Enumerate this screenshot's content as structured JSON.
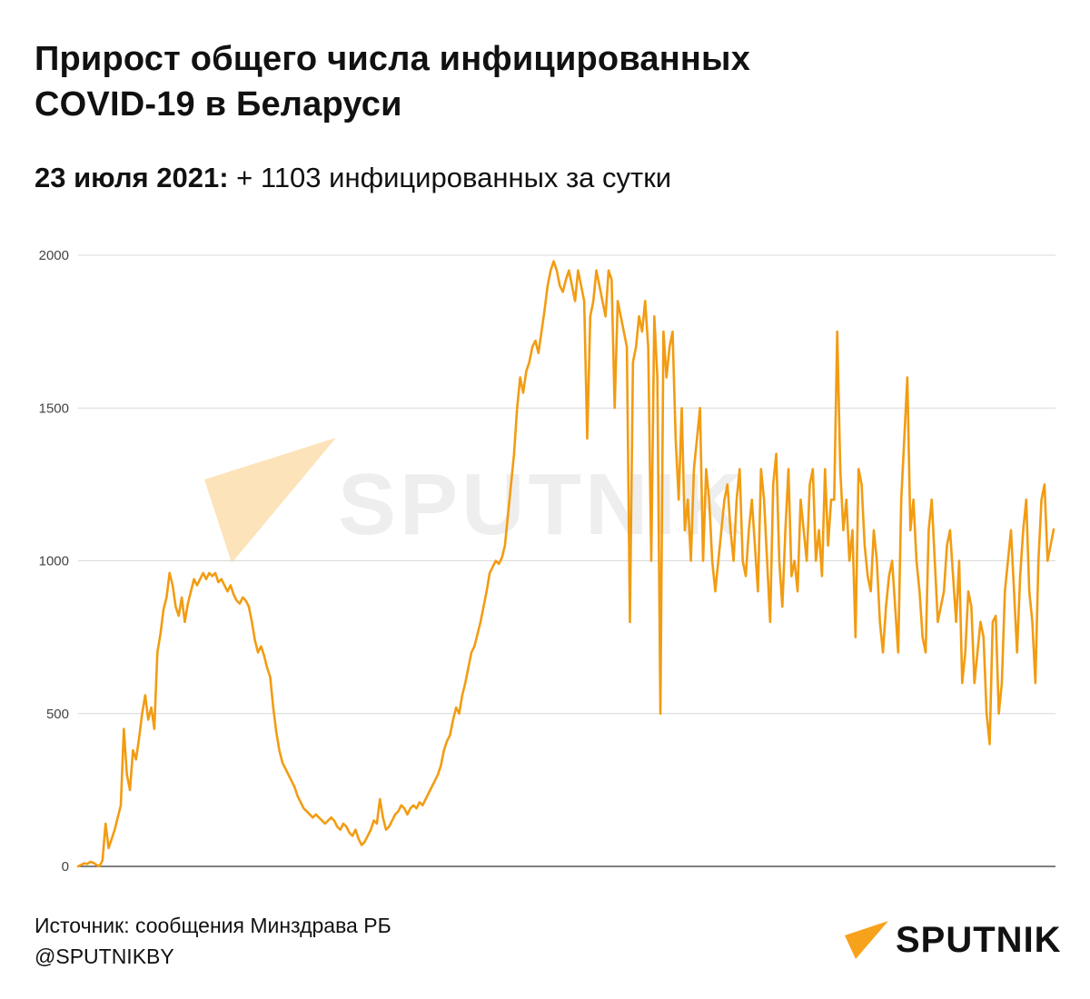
{
  "header": {
    "title_line1": "Прирост общего числа инфицированных",
    "title_line2": "COVID-19 в Беларуси",
    "subtitle_date": "23 июля 2021:",
    "subtitle_text": " + 1103 инфицированных за сутки"
  },
  "footer": {
    "source": "Источник: сообщения Минздрава РБ",
    "handle": "@SPUTNIKBY"
  },
  "brand": {
    "logo_text": "SPUTNIK",
    "watermark_text": "SPUTNIK",
    "accent_color": "#F29C12",
    "logo_color": "#F7A21B"
  },
  "chart_data": {
    "type": "line",
    "title": "Прирост общего числа инфицированных COVID-19 в Беларуси",
    "xlabel": "",
    "ylabel": "",
    "ylim": [
      0,
      2000
    ],
    "yticks": [
      0,
      500,
      1000,
      1500,
      2000
    ],
    "grid": true,
    "legend": "none",
    "series": [
      {
        "values": [
          0,
          5,
          10,
          8,
          15,
          12,
          5,
          0,
          20,
          140,
          60,
          90,
          120,
          160,
          200,
          450,
          300,
          250,
          380,
          350,
          420,
          500,
          560,
          480,
          520,
          450,
          700,
          760,
          840,
          880,
          960,
          920,
          850,
          820,
          880,
          800,
          860,
          900,
          940,
          920,
          940,
          960,
          940,
          960,
          950,
          960,
          930,
          940,
          920,
          900,
          920,
          890,
          870,
          860,
          880,
          870,
          850,
          800,
          740,
          700,
          720,
          690,
          650,
          620,
          520,
          440,
          380,
          340,
          320,
          300,
          280,
          260,
          230,
          210,
          190,
          180,
          170,
          160,
          170,
          160,
          150,
          140,
          150,
          160,
          150,
          130,
          120,
          140,
          130,
          110,
          100,
          120,
          90,
          70,
          80,
          100,
          120,
          150,
          140,
          220,
          160,
          120,
          130,
          150,
          170,
          180,
          200,
          190,
          170,
          190,
          200,
          190,
          210,
          200,
          220,
          240,
          260,
          280,
          300,
          330,
          380,
          410,
          430,
          480,
          520,
          500,
          560,
          600,
          650,
          700,
          720,
          760,
          800,
          850,
          900,
          960,
          980,
          1000,
          990,
          1010,
          1050,
          1150,
          1250,
          1350,
          1500,
          1600,
          1550,
          1620,
          1650,
          1700,
          1720,
          1680,
          1750,
          1820,
          1900,
          1950,
          1980,
          1950,
          1900,
          1880,
          1920,
          1950,
          1900,
          1850,
          1950,
          1900,
          1850,
          1400,
          1800,
          1850,
          1950,
          1900,
          1850,
          1800,
          1950,
          1920,
          1500,
          1850,
          1800,
          1750,
          1700,
          800,
          1650,
          1700,
          1800,
          1750,
          1850,
          1700,
          1000,
          1800,
          1600,
          500,
          1750,
          1600,
          1700,
          1750,
          1400,
          1200,
          1500,
          1100,
          1200,
          1000,
          1300,
          1400,
          1500,
          1000,
          1300,
          1200,
          1000,
          900,
          1000,
          1100,
          1200,
          1250,
          1100,
          1000,
          1200,
          1300,
          1000,
          950,
          1100,
          1200,
          1050,
          900,
          1300,
          1200,
          1000,
          800,
          1250,
          1350,
          1000,
          850,
          1100,
          1300,
          950,
          1000,
          900,
          1200,
          1100,
          1000,
          1250,
          1300,
          1000,
          1100,
          950,
          1300,
          1050,
          1200,
          1200,
          1750,
          1300,
          1100,
          1200,
          1000,
          1100,
          750,
          1300,
          1250,
          1050,
          950,
          900,
          1100,
          1000,
          800,
          700,
          850,
          950,
          1000,
          850,
          700,
          1200,
          1400,
          1600,
          1100,
          1200,
          1000,
          900,
          750,
          700,
          1100,
          1200,
          1000,
          800,
          850,
          900,
          1050,
          1100,
          950,
          800,
          1000,
          600,
          700,
          900,
          850,
          600,
          700,
          800,
          750,
          500,
          400,
          800,
          820,
          500,
          600,
          900,
          1000,
          1100,
          900,
          700,
          950,
          1100,
          1200,
          900,
          800,
          600,
          1000,
          1200,
          1250,
          1000,
          1050,
          1103
        ],
        "color": "#F29C12"
      }
    ]
  }
}
